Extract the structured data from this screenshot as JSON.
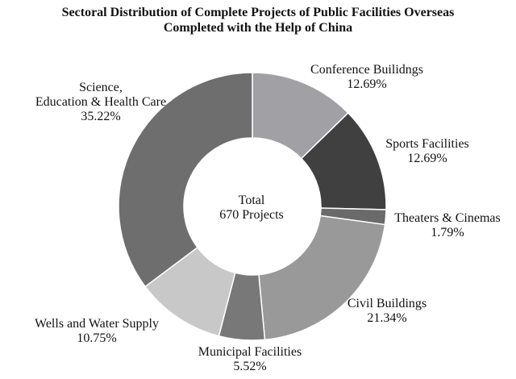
{
  "chart_data": {
    "type": "pie",
    "donut": true,
    "title_lines": [
      "Sectoral Distribution of Complete Projects of Public Facilities Overseas",
      "Completed with the Help of China"
    ],
    "center_label_lines": [
      "Total",
      "670 Projects"
    ],
    "slices": [
      {
        "name": "Conference Builidngs",
        "value": 12.69,
        "label": "12.69%",
        "color": "#a0a0a5"
      },
      {
        "name": "Sports Facilities",
        "value": 12.69,
        "label": "12.69%",
        "color": "#404040"
      },
      {
        "name": "Theaters & Cinemas",
        "value": 1.79,
        "label": "1.79%",
        "color": "#6a6a6a"
      },
      {
        "name": "Civil Buildings",
        "value": 21.34,
        "label": "21.34%",
        "color": "#999999"
      },
      {
        "name": "Municipal Facilities",
        "value": 5.52,
        "label": "5.52%",
        "color": "#787878"
      },
      {
        "name": "Wells and Water Supply",
        "value": 10.75,
        "label": "10.75%",
        "color": "#c8c8c8"
      },
      {
        "name": "Science,\nEducation & Health Care",
        "value": 35.22,
        "label": "35.22%",
        "color": "#6e6e6e"
      }
    ]
  }
}
